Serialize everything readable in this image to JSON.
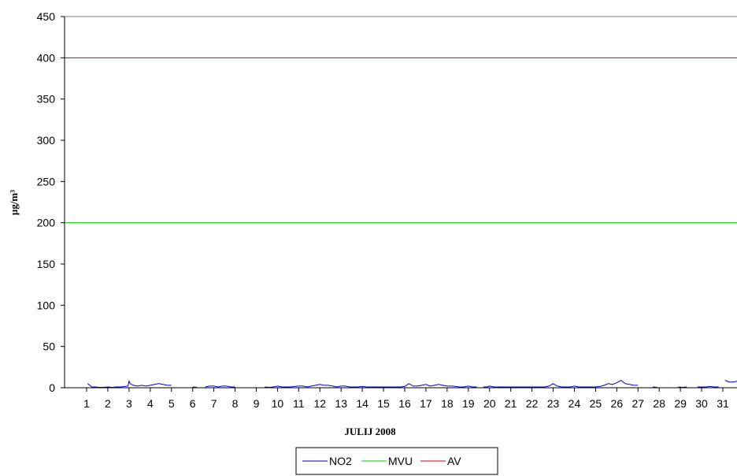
{
  "chart_data": {
    "type": "line",
    "title": "",
    "xlabel": "JULIJ 2008",
    "ylabel": "µg/m³",
    "ylim": [
      0,
      450
    ],
    "yticks": [
      0,
      50,
      100,
      150,
      200,
      250,
      300,
      350,
      400,
      450
    ],
    "xlim": [
      1,
      31.8
    ],
    "xticks": [
      "1",
      "2",
      "3",
      "4",
      "5",
      "6",
      "7",
      "8",
      "9",
      "10",
      "11",
      "12",
      "13",
      "14",
      "15",
      "16",
      "17",
      "18",
      "19",
      "20",
      "21",
      "22",
      "23",
      "24",
      "25",
      "26",
      "27",
      "28",
      "29",
      "30",
      "31"
    ],
    "grid": false,
    "legend_position": "bottom-center",
    "series": [
      {
        "name": "NO2",
        "color": "#0000cc",
        "segments": [
          [
            [
              1.05,
              5
            ],
            [
              1.15,
              3
            ],
            [
              1.25,
              1
            ],
            [
              1.4,
              1
            ],
            [
              1.6,
              0.5
            ],
            [
              1.8,
              0.5
            ],
            [
              2.0,
              1
            ],
            [
              2.2,
              0.5
            ],
            [
              2.4,
              1
            ],
            [
              2.6,
              1
            ],
            [
              2.8,
              1.5
            ],
            [
              2.95,
              2
            ],
            [
              3.0,
              8
            ],
            [
              3.05,
              5
            ],
            [
              3.2,
              3
            ],
            [
              3.4,
              2
            ],
            [
              3.6,
              3
            ],
            [
              3.8,
              2
            ],
            [
              4.0,
              3
            ],
            [
              4.2,
              4
            ],
            [
              4.4,
              5
            ],
            [
              4.6,
              4
            ],
            [
              4.8,
              3
            ],
            [
              5.0,
              3
            ]
          ],
          [
            [
              6.0,
              1
            ],
            [
              6.2,
              0.5
            ]
          ],
          [
            [
              6.6,
              1
            ],
            [
              6.8,
              2
            ],
            [
              7.0,
              2
            ],
            [
              7.2,
              1
            ],
            [
              7.4,
              2
            ],
            [
              7.6,
              2
            ],
            [
              7.8,
              1
            ],
            [
              8.0,
              1
            ]
          ],
          [
            [
              9.4,
              1
            ],
            [
              9.6,
              0.5
            ],
            [
              9.8,
              1
            ],
            [
              10.0,
              2
            ],
            [
              10.2,
              1
            ],
            [
              10.4,
              1
            ],
            [
              10.6,
              1
            ],
            [
              10.8,
              1.5
            ],
            [
              11.0,
              2
            ],
            [
              11.2,
              2
            ],
            [
              11.4,
              1
            ],
            [
              11.6,
              2
            ],
            [
              11.8,
              3
            ],
            [
              12.0,
              4
            ],
            [
              12.2,
              3
            ],
            [
              12.4,
              3
            ],
            [
              12.6,
              2
            ],
            [
              12.8,
              1
            ],
            [
              13.0,
              2
            ],
            [
              13.2,
              2
            ],
            [
              13.4,
              1
            ],
            [
              13.6,
              1
            ],
            [
              13.8,
              1
            ],
            [
              14.0,
              1.5
            ],
            [
              14.2,
              1
            ],
            [
              14.4,
              1
            ],
            [
              14.6,
              1
            ],
            [
              14.8,
              1
            ],
            [
              15.0,
              1
            ],
            [
              15.2,
              1
            ],
            [
              15.4,
              1
            ],
            [
              15.6,
              1
            ],
            [
              15.8,
              1
            ],
            [
              16.0,
              1.5
            ],
            [
              16.2,
              5
            ],
            [
              16.4,
              2
            ],
            [
              16.6,
              2
            ],
            [
              16.8,
              3
            ],
            [
              17.0,
              4
            ],
            [
              17.2,
              2
            ],
            [
              17.4,
              3
            ],
            [
              17.6,
              4
            ],
            [
              17.8,
              3
            ],
            [
              18.0,
              2
            ],
            [
              18.2,
              2
            ],
            [
              18.4,
              1.5
            ],
            [
              18.6,
              1
            ],
            [
              18.8,
              1
            ],
            [
              19.0,
              2
            ],
            [
              19.2,
              1
            ],
            [
              19.4,
              1
            ]
          ],
          [
            [
              19.7,
              1
            ],
            [
              19.9,
              1
            ],
            [
              20.0,
              2
            ],
            [
              20.2,
              1
            ],
            [
              20.4,
              1
            ],
            [
              20.6,
              1
            ],
            [
              20.8,
              1
            ],
            [
              21.0,
              1
            ],
            [
              21.2,
              1
            ],
            [
              21.4,
              1
            ],
            [
              21.6,
              1
            ],
            [
              21.8,
              1
            ],
            [
              22.0,
              1
            ],
            [
              22.2,
              1
            ],
            [
              22.4,
              1
            ],
            [
              22.6,
              1
            ],
            [
              22.8,
              2
            ],
            [
              23.0,
              5
            ],
            [
              23.2,
              2
            ],
            [
              23.4,
              1
            ],
            [
              23.6,
              1
            ],
            [
              23.8,
              1
            ],
            [
              24.0,
              2
            ],
            [
              24.2,
              1
            ],
            [
              24.4,
              1
            ],
            [
              24.6,
              1
            ],
            [
              24.8,
              1
            ],
            [
              25.0,
              1
            ],
            [
              25.2,
              1.5
            ],
            [
              25.4,
              3
            ],
            [
              25.6,
              5
            ],
            [
              25.8,
              4
            ],
            [
              26.0,
              6
            ],
            [
              26.2,
              9
            ],
            [
              26.4,
              5
            ],
            [
              26.6,
              4
            ],
            [
              26.8,
              3
            ],
            [
              27.0,
              3
            ]
          ],
          [
            [
              27.7,
              1
            ],
            [
              27.9,
              0.5
            ]
          ],
          [
            [
              28.9,
              1
            ],
            [
              29.1,
              0.5
            ],
            [
              29.3,
              1
            ]
          ],
          [
            [
              29.8,
              1
            ],
            [
              30.0,
              1
            ],
            [
              30.2,
              1
            ],
            [
              30.4,
              1.5
            ],
            [
              30.6,
              1
            ],
            [
              30.8,
              1
            ]
          ],
          [
            [
              31.1,
              9
            ],
            [
              31.3,
              7
            ],
            [
              31.5,
              7
            ],
            [
              31.7,
              8
            ],
            [
              31.8,
              8
            ]
          ]
        ]
      },
      {
        "name": "MVU",
        "color": "#00cc00",
        "constant": 200
      },
      {
        "name": "AV",
        "color": "#cc0000",
        "constant": 400
      }
    ]
  }
}
